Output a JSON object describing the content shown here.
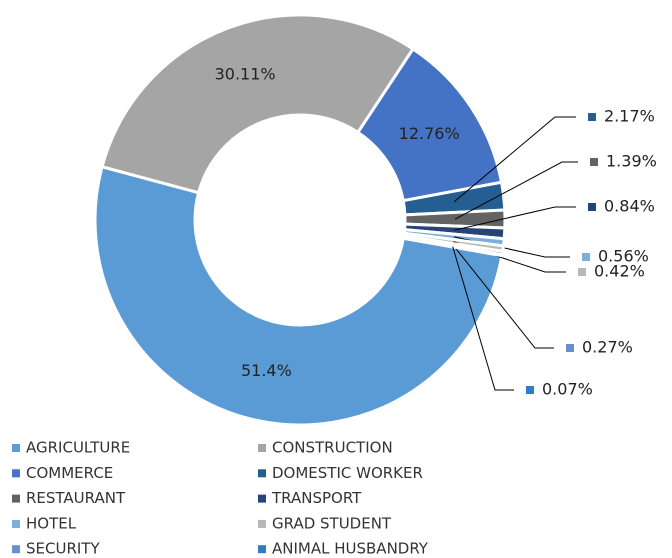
{
  "chart_data": {
    "type": "doughnut",
    "categories": [
      "AGRICULTURE",
      "CONSTRUCTION",
      "COMMERCE",
      "DOMESTIC WORKER",
      "RESTAURANT",
      "TRANSPORT",
      "HOTEL",
      "GRAD STUDENT",
      "SECURITY",
      "ANIMAL HUSBANDRY"
    ],
    "values": [
      51.4,
      30.11,
      12.76,
      2.17,
      1.39,
      0.84,
      0.56,
      0.42,
      0.27,
      0.07
    ],
    "value_labels": [
      "51.4%",
      "30.11%",
      "12.76%",
      "2.17%",
      "1.39%",
      "0.84%",
      "0.56%",
      "0.42%",
      "0.27%",
      "0.07%"
    ],
    "colors": [
      "#5b9bd5",
      "#a5a5a5",
      "#4472c4",
      "#255e91",
      "#636363",
      "#264478",
      "#7cafdd",
      "#b7b7b7",
      "#698ed0",
      "#327dc2"
    ],
    "legend": "bottom"
  }
}
